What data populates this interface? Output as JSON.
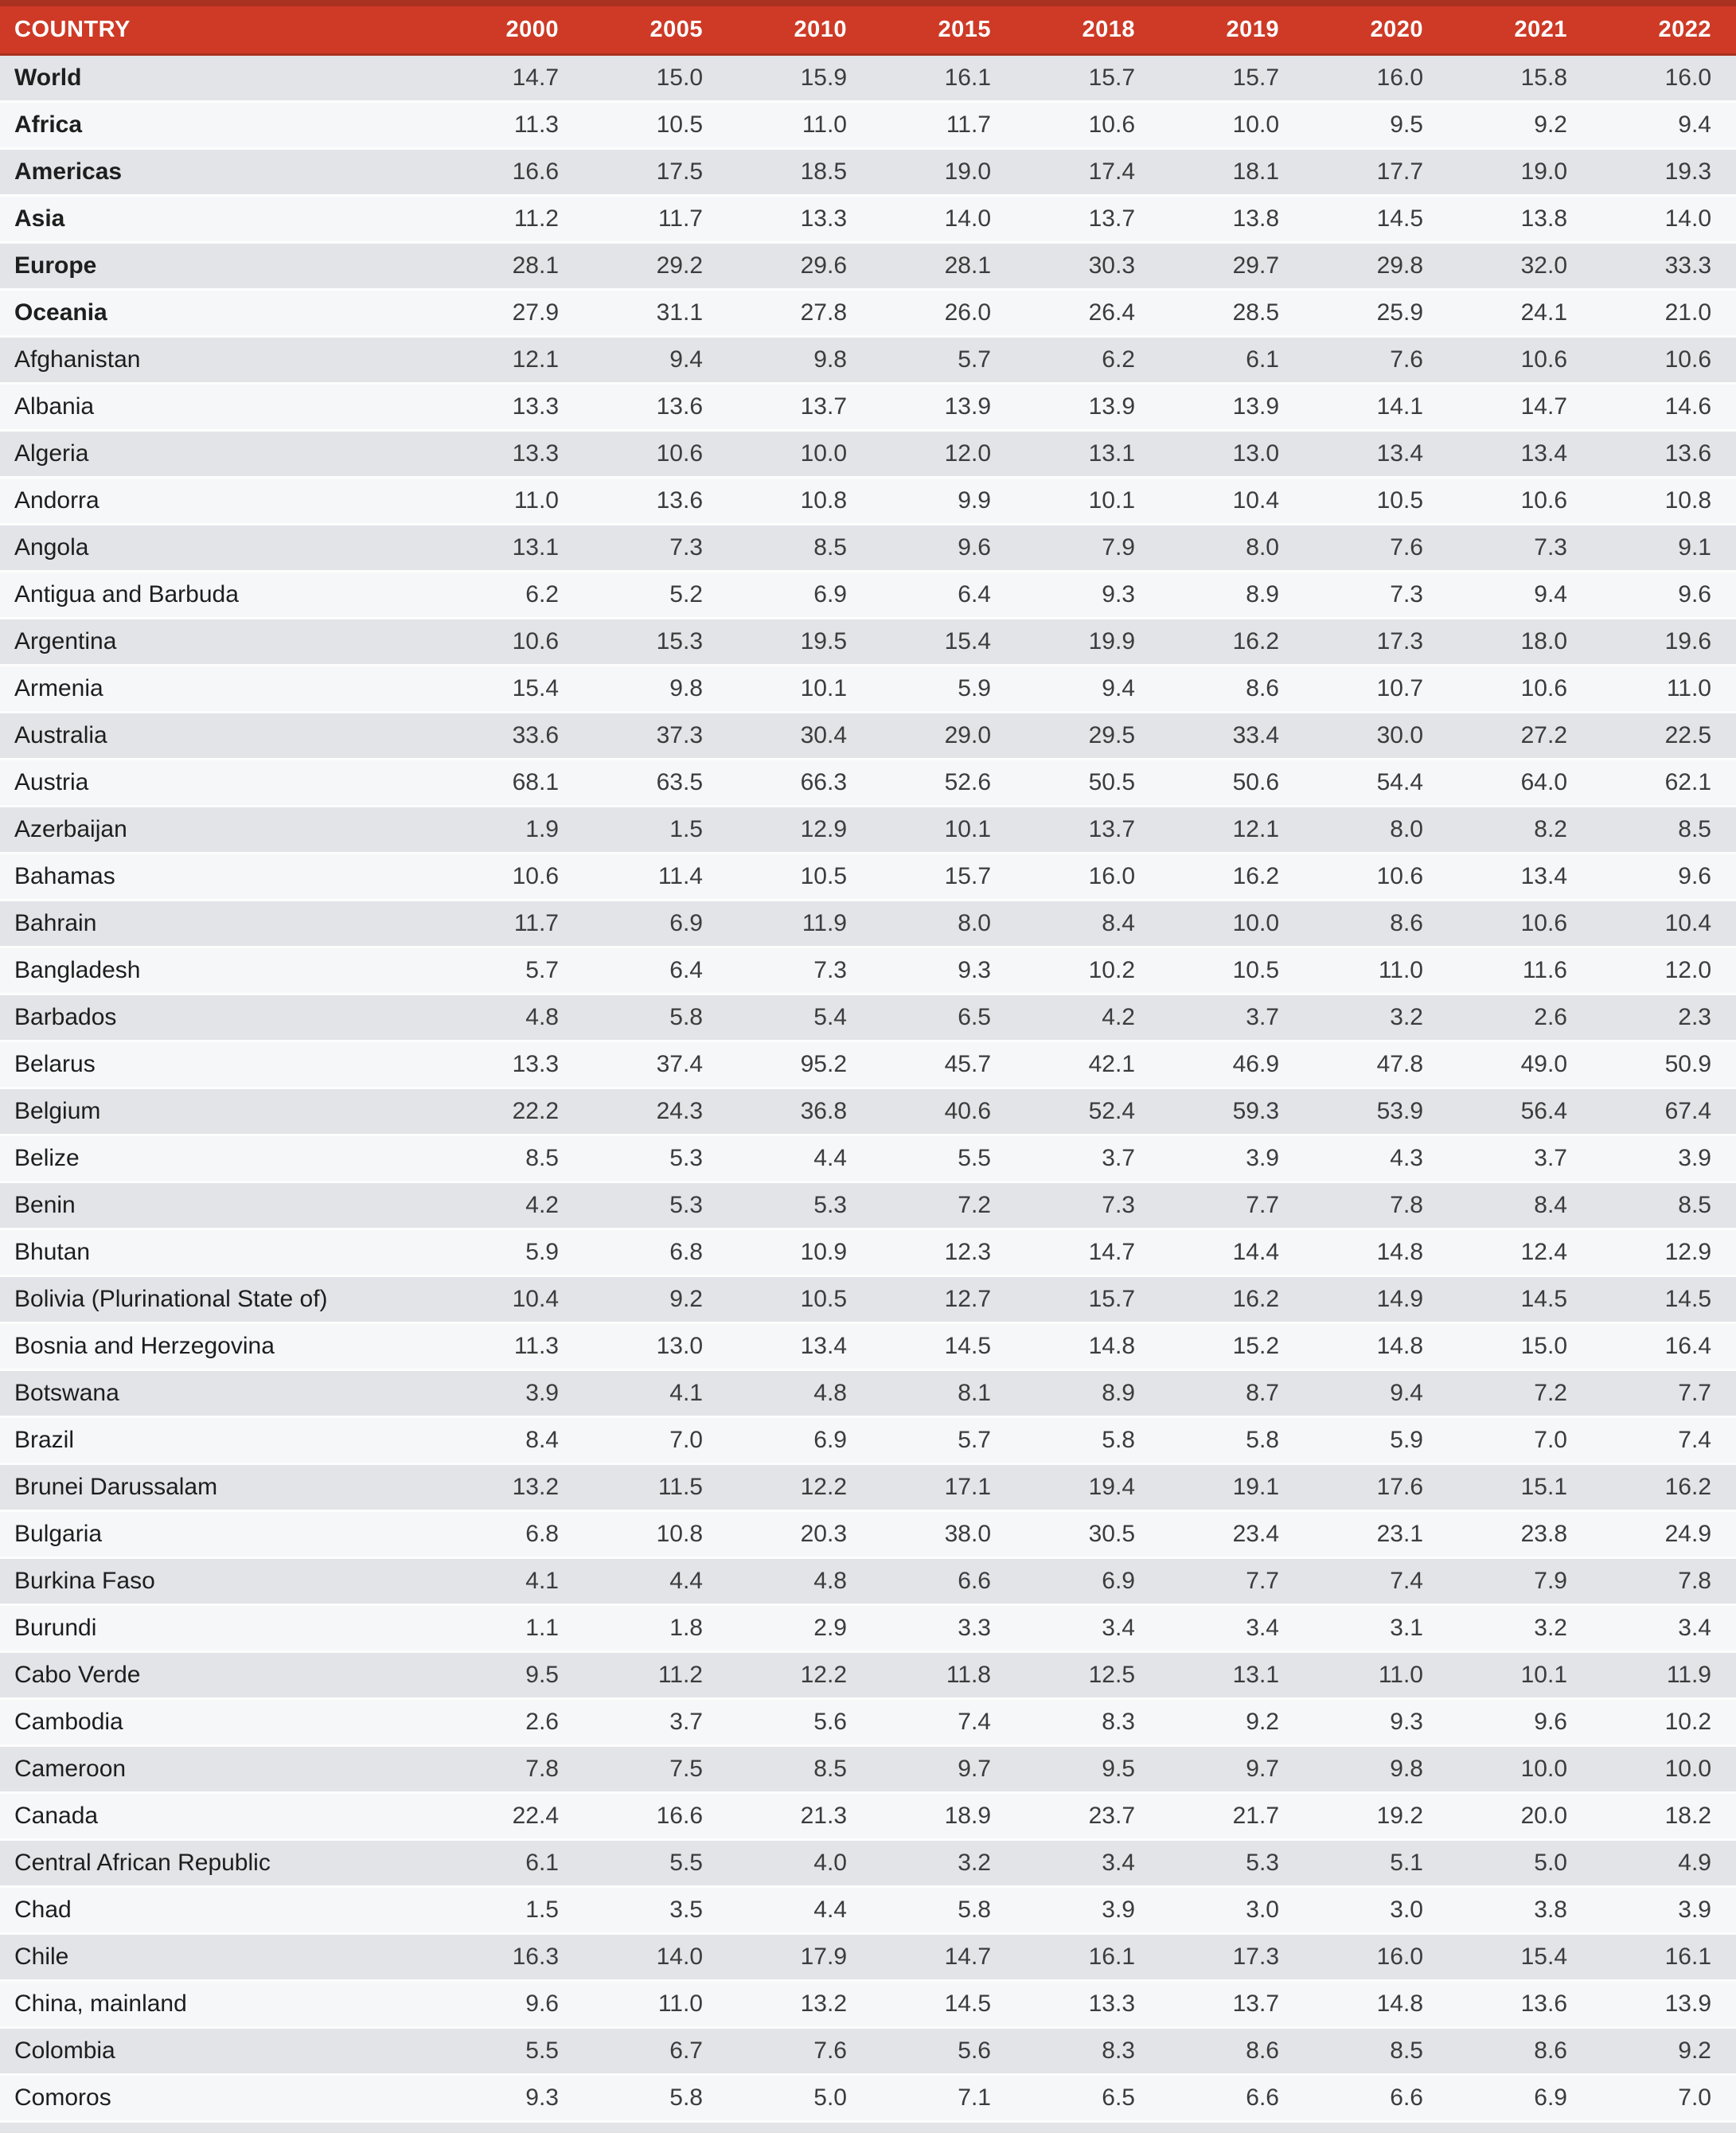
{
  "table": {
    "columns": [
      "COUNTRY",
      "2000",
      "2005",
      "2010",
      "2015",
      "2018",
      "2019",
      "2020",
      "2021",
      "2022"
    ],
    "rows": [
      {
        "country": "World",
        "bold": true,
        "values": [
          "14.7",
          "15.0",
          "15.9",
          "16.1",
          "15.7",
          "15.7",
          "16.0",
          "15.8",
          "16.0"
        ]
      },
      {
        "country": "Africa",
        "bold": true,
        "values": [
          "11.3",
          "10.5",
          "11.0",
          "11.7",
          "10.6",
          "10.0",
          "9.5",
          "9.2",
          "9.4"
        ]
      },
      {
        "country": "Americas",
        "bold": true,
        "values": [
          "16.6",
          "17.5",
          "18.5",
          "19.0",
          "17.4",
          "18.1",
          "17.7",
          "19.0",
          "19.3"
        ]
      },
      {
        "country": "Asia",
        "bold": true,
        "values": [
          "11.2",
          "11.7",
          "13.3",
          "14.0",
          "13.7",
          "13.8",
          "14.5",
          "13.8",
          "14.0"
        ]
      },
      {
        "country": "Europe",
        "bold": true,
        "values": [
          "28.1",
          "29.2",
          "29.6",
          "28.1",
          "30.3",
          "29.7",
          "29.8",
          "32.0",
          "33.3"
        ]
      },
      {
        "country": "Oceania",
        "bold": true,
        "values": [
          "27.9",
          "31.1",
          "27.8",
          "26.0",
          "26.4",
          "28.5",
          "25.9",
          "24.1",
          "21.0"
        ]
      },
      {
        "country": "Afghanistan",
        "bold": false,
        "values": [
          "12.1",
          "9.4",
          "9.8",
          "5.7",
          "6.2",
          "6.1",
          "7.6",
          "10.6",
          "10.6"
        ]
      },
      {
        "country": "Albania",
        "bold": false,
        "values": [
          "13.3",
          "13.6",
          "13.7",
          "13.9",
          "13.9",
          "13.9",
          "14.1",
          "14.7",
          "14.6"
        ]
      },
      {
        "country": "Algeria",
        "bold": false,
        "values": [
          "13.3",
          "10.6",
          "10.0",
          "12.0",
          "13.1",
          "13.0",
          "13.4",
          "13.4",
          "13.6"
        ]
      },
      {
        "country": "Andorra",
        "bold": false,
        "values": [
          "11.0",
          "13.6",
          "10.8",
          "9.9",
          "10.1",
          "10.4",
          "10.5",
          "10.6",
          "10.8"
        ]
      },
      {
        "country": "Angola",
        "bold": false,
        "values": [
          "13.1",
          "7.3",
          "8.5",
          "9.6",
          "7.9",
          "8.0",
          "7.6",
          "7.3",
          "9.1"
        ]
      },
      {
        "country": "Antigua and Barbuda",
        "bold": false,
        "values": [
          "6.2",
          "5.2",
          "6.9",
          "6.4",
          "9.3",
          "8.9",
          "7.3",
          "9.4",
          "9.6"
        ]
      },
      {
        "country": "Argentina",
        "bold": false,
        "values": [
          "10.6",
          "15.3",
          "19.5",
          "15.4",
          "19.9",
          "16.2",
          "17.3",
          "18.0",
          "19.6"
        ]
      },
      {
        "country": "Armenia",
        "bold": false,
        "values": [
          "15.4",
          "9.8",
          "10.1",
          "5.9",
          "9.4",
          "8.6",
          "10.7",
          "10.6",
          "11.0"
        ]
      },
      {
        "country": "Australia",
        "bold": false,
        "values": [
          "33.6",
          "37.3",
          "30.4",
          "29.0",
          "29.5",
          "33.4",
          "30.0",
          "27.2",
          "22.5"
        ]
      },
      {
        "country": "Austria",
        "bold": false,
        "values": [
          "68.1",
          "63.5",
          "66.3",
          "52.6",
          "50.5",
          "50.6",
          "54.4",
          "64.0",
          "62.1"
        ]
      },
      {
        "country": "Azerbaijan",
        "bold": false,
        "values": [
          "1.9",
          "1.5",
          "12.9",
          "10.1",
          "13.7",
          "12.1",
          "8.0",
          "8.2",
          "8.5"
        ]
      },
      {
        "country": "Bahamas",
        "bold": false,
        "values": [
          "10.6",
          "11.4",
          "10.5",
          "15.7",
          "16.0",
          "16.2",
          "10.6",
          "13.4",
          "9.6"
        ]
      },
      {
        "country": "Bahrain",
        "bold": false,
        "values": [
          "11.7",
          "6.9",
          "11.9",
          "8.0",
          "8.4",
          "10.0",
          "8.6",
          "10.6",
          "10.4"
        ]
      },
      {
        "country": "Bangladesh",
        "bold": false,
        "values": [
          "5.7",
          "6.4",
          "7.3",
          "9.3",
          "10.2",
          "10.5",
          "11.0",
          "11.6",
          "12.0"
        ]
      },
      {
        "country": "Barbados",
        "bold": false,
        "values": [
          "4.8",
          "5.8",
          "5.4",
          "6.5",
          "4.2",
          "3.7",
          "3.2",
          "2.6",
          "2.3"
        ]
      },
      {
        "country": "Belarus",
        "bold": false,
        "values": [
          "13.3",
          "37.4",
          "95.2",
          "45.7",
          "42.1",
          "46.9",
          "47.8",
          "49.0",
          "50.9"
        ]
      },
      {
        "country": "Belgium",
        "bold": false,
        "values": [
          "22.2",
          "24.3",
          "36.8",
          "40.6",
          "52.4",
          "59.3",
          "53.9",
          "56.4",
          "67.4"
        ]
      },
      {
        "country": "Belize",
        "bold": false,
        "values": [
          "8.5",
          "5.3",
          "4.4",
          "5.5",
          "3.7",
          "3.9",
          "4.3",
          "3.7",
          "3.9"
        ]
      },
      {
        "country": "Benin",
        "bold": false,
        "values": [
          "4.2",
          "5.3",
          "5.3",
          "7.2",
          "7.3",
          "7.7",
          "7.8",
          "8.4",
          "8.5"
        ]
      },
      {
        "country": "Bhutan",
        "bold": false,
        "values": [
          "5.9",
          "6.8",
          "10.9",
          "12.3",
          "14.7",
          "14.4",
          "14.8",
          "12.4",
          "12.9"
        ]
      },
      {
        "country": "Bolivia (Plurinational State of)",
        "bold": false,
        "values": [
          "10.4",
          "9.2",
          "10.5",
          "12.7",
          "15.7",
          "16.2",
          "14.9",
          "14.5",
          "14.5"
        ]
      },
      {
        "country": "Bosnia and Herzegovina",
        "bold": false,
        "values": [
          "11.3",
          "13.0",
          "13.4",
          "14.5",
          "14.8",
          "15.2",
          "14.8",
          "15.0",
          "16.4"
        ]
      },
      {
        "country": "Botswana",
        "bold": false,
        "values": [
          "3.9",
          "4.1",
          "4.8",
          "8.1",
          "8.9",
          "8.7",
          "9.4",
          "7.2",
          "7.7"
        ]
      },
      {
        "country": "Brazil",
        "bold": false,
        "values": [
          "8.4",
          "7.0",
          "6.9",
          "5.7",
          "5.8",
          "5.8",
          "5.9",
          "7.0",
          "7.4"
        ]
      },
      {
        "country": "Brunei Darussalam",
        "bold": false,
        "values": [
          "13.2",
          "11.5",
          "12.2",
          "17.1",
          "19.4",
          "19.1",
          "17.6",
          "15.1",
          "16.2"
        ]
      },
      {
        "country": "Bulgaria",
        "bold": false,
        "values": [
          "6.8",
          "10.8",
          "20.3",
          "38.0",
          "30.5",
          "23.4",
          "23.1",
          "23.8",
          "24.9"
        ]
      },
      {
        "country": "Burkina Faso",
        "bold": false,
        "values": [
          "4.1",
          "4.4",
          "4.8",
          "6.6",
          "6.9",
          "7.7",
          "7.4",
          "7.9",
          "7.8"
        ]
      },
      {
        "country": "Burundi",
        "bold": false,
        "values": [
          "1.1",
          "1.8",
          "2.9",
          "3.3",
          "3.4",
          "3.4",
          "3.1",
          "3.2",
          "3.4"
        ]
      },
      {
        "country": "Cabo Verde",
        "bold": false,
        "values": [
          "9.5",
          "11.2",
          "12.2",
          "11.8",
          "12.5",
          "13.1",
          "11.0",
          "10.1",
          "11.9"
        ]
      },
      {
        "country": "Cambodia",
        "bold": false,
        "values": [
          "2.6",
          "3.7",
          "5.6",
          "7.4",
          "8.3",
          "9.2",
          "9.3",
          "9.6",
          "10.2"
        ]
      },
      {
        "country": "Cameroon",
        "bold": false,
        "values": [
          "7.8",
          "7.5",
          "8.5",
          "9.7",
          "9.5",
          "9.7",
          "9.8",
          "10.0",
          "10.0"
        ]
      },
      {
        "country": "Canada",
        "bold": false,
        "values": [
          "22.4",
          "16.6",
          "21.3",
          "18.9",
          "23.7",
          "21.7",
          "19.2",
          "20.0",
          "18.2"
        ]
      },
      {
        "country": "Central African Republic",
        "bold": false,
        "values": [
          "6.1",
          "5.5",
          "4.0",
          "3.2",
          "3.4",
          "5.3",
          "5.1",
          "5.0",
          "4.9"
        ]
      },
      {
        "country": "Chad",
        "bold": false,
        "values": [
          "1.5",
          "3.5",
          "4.4",
          "5.8",
          "3.9",
          "3.0",
          "3.0",
          "3.8",
          "3.9"
        ]
      },
      {
        "country": "Chile",
        "bold": false,
        "values": [
          "16.3",
          "14.0",
          "17.9",
          "14.7",
          "16.1",
          "17.3",
          "16.0",
          "15.4",
          "16.1"
        ]
      },
      {
        "country": "China, mainland",
        "bold": false,
        "values": [
          "9.6",
          "11.0",
          "13.2",
          "14.5",
          "13.3",
          "13.7",
          "14.8",
          "13.6",
          "13.9"
        ]
      },
      {
        "country": "Colombia",
        "bold": false,
        "values": [
          "5.5",
          "6.7",
          "7.6",
          "5.6",
          "8.3",
          "8.6",
          "8.5",
          "8.6",
          "9.2"
        ]
      },
      {
        "country": "Comoros",
        "bold": false,
        "values": [
          "9.3",
          "5.8",
          "5.0",
          "7.1",
          "6.5",
          "6.6",
          "6.6",
          "6.9",
          "7.0"
        ]
      }
    ]
  },
  "colors": {
    "header_bg": "#ce3a26",
    "header_border": "#a93120",
    "row_odd_bg": "#e2e4e8",
    "row_even_bg": "#f6f7f8",
    "header_text": "#ffffff",
    "body_text": "#3c3c3c"
  }
}
